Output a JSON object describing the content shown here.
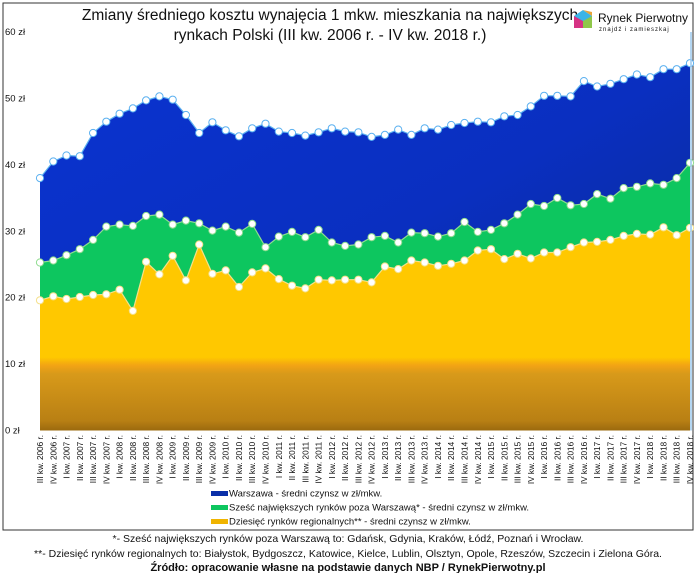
{
  "title_line1": "Zmiany średniego kosztu wynajęcia 1 mkw. mieszkania na największych",
  "title_line2": "rynkach Polski (III kw. 2006 r. - IV kw. 2018 r.)",
  "logo": {
    "name": "Rynek Pierwotny",
    "tagline": "znajdź i zamieszkaj",
    "colors": [
      "#e8a33b",
      "#3bb4e8",
      "#8fc74a",
      "#d63384"
    ]
  },
  "footnote1": "*- Sześć największych rynków poza Warszawą to: Gdańsk, Gdynia, Kraków, Łódź, Poznań i Wrocław.",
  "footnote2": "**- Dziesięć rynków regionalnych to: Białystok, Bydgoszcz, Katowice, Kielce, Lublin, Olsztyn, Opole, Rzeszów, Szczecin i Zielona Góra.",
  "source": "Źródło: opracowanie własne na podstawie danych NBP / RynekPierwotny.pl",
  "chart_data": {
    "type": "area",
    "title": "Zmiany średniego kosztu wynajęcia 1 mkw. mieszkania na największych rynkach Polski (III kw. 2006 r. - IV kw. 2018 r.)",
    "ylim": [
      0,
      60
    ],
    "yticks": [
      0,
      10,
      20,
      30,
      40,
      50,
      60
    ],
    "ytick_labels": [
      "0 zł",
      "10 zł",
      "20 zł",
      "30 zł",
      "40 zł",
      "50 zł",
      "60 zł"
    ],
    "grid": false,
    "legend_placement": "bottom-center",
    "categories": [
      "III kw. 2006 r.",
      "IV kw. 2006 r.",
      "I kw. 2007 r.",
      "II kw. 2007 r.",
      "III kw. 2007 r.",
      "IV kw. 2007 r.",
      "I kw. 2008 r.",
      "II kw. 2008 r.",
      "III kw. 2008 r.",
      "IV kw. 2008 r.",
      "I kw. 2009 r.",
      "II kw. 2009 r.",
      "III kw. 2009 r.",
      "IV kw. 2009 r.",
      "I kw. 2010 r.",
      "II kw. 2010 r.",
      "III kw. 2010 r.",
      "IV kw. 2010 r.",
      "I kw. 2011 r.",
      "II kw. 2011 r.",
      "III kw. 2011 r.",
      "IV kw. 2011 r.",
      "I kw. 2012 r.",
      "II kw. 2012 r.",
      "III kw. 2012 r.",
      "IV kw. 2012 r.",
      "I kw. 2013 r.",
      "II kw. 2013 r.",
      "III kw. 2013 r.",
      "IV kw. 2013 r.",
      "I kw. 2014 r.",
      "II kw. 2014 r.",
      "III kw. 2014 r.",
      "IV kw. 2014 r.",
      "I kw. 2015 r.",
      "II kw. 2015 r.",
      "III kw. 2015 r.",
      "IV kw. 2015 r.",
      "I kw. 2016 r.",
      "II kw. 2016 r.",
      "III kw. 2016 r.",
      "IV kw. 2016 r.",
      "I kw. 2017 r.",
      "II kw. 2017 r.",
      "III kw. 2017 r.",
      "IV kw. 2017 r.",
      "I kw. 2018 r.",
      "II kw. 2018 r.",
      "III kw. 2018 r.",
      "IV kw. 2018 r."
    ],
    "series": [
      {
        "name": "Warszawa - średni czynsz w zł/mkw.",
        "color": "#0a2fc0",
        "values": [
          38.0,
          40.5,
          41.4,
          41.3,
          44.8,
          46.5,
          47.7,
          48.5,
          49.7,
          50.3,
          49.8,
          47.5,
          44.8,
          46.4,
          45.2,
          44.3,
          45.5,
          46.2,
          45.0,
          44.8,
          44.4,
          44.9,
          45.5,
          45.0,
          44.9,
          44.2,
          44.5,
          45.3,
          44.5,
          45.5,
          45.3,
          46.0,
          46.3,
          46.5,
          46.4,
          47.3,
          47.5,
          48.8,
          50.4,
          50.4,
          50.3,
          52.6,
          51.8,
          52.2,
          52.9,
          53.6,
          53.2,
          54.4,
          54.4,
          55.3
        ]
      },
      {
        "name": "Sześć największych rynków poza Warszawą* - średni czynsz w zł/mkw.",
        "color": "#0dc65f",
        "values": [
          25.3,
          25.6,
          26.4,
          27.3,
          28.7,
          30.7,
          31.0,
          30.8,
          32.3,
          32.5,
          31.0,
          31.6,
          31.2,
          30.1,
          30.7,
          29.8,
          31.1,
          27.6,
          29.2,
          29.9,
          29.1,
          30.2,
          28.3,
          27.8,
          28.0,
          29.1,
          29.3,
          28.3,
          29.8,
          29.7,
          29.2,
          29.7,
          31.4,
          29.9,
          30.2,
          31.2,
          32.5,
          34.1,
          33.8,
          35.0,
          33.9,
          34.1,
          35.6,
          34.9,
          36.5,
          36.7,
          37.2,
          37.0,
          38.0,
          40.3
        ]
      },
      {
        "name": "Dziesięć rynków regionalnych** - średni czynsz w zł/mkw.",
        "color": "#ffc800",
        "values": [
          19.6,
          20.2,
          19.8,
          20.1,
          20.4,
          20.5,
          21.2,
          18.0,
          25.4,
          23.5,
          26.3,
          22.6,
          28.0,
          23.6,
          24.1,
          21.6,
          23.8,
          24.4,
          22.8,
          21.8,
          21.4,
          22.7,
          22.6,
          22.7,
          22.7,
          22.3,
          24.7,
          24.3,
          25.6,
          25.3,
          24.8,
          25.1,
          25.6,
          27.1,
          27.3,
          25.8,
          26.6,
          25.9,
          26.8,
          26.8,
          27.6,
          28.3,
          28.4,
          28.7,
          29.3,
          29.6,
          29.5,
          30.6,
          29.4,
          30.5
        ]
      }
    ]
  }
}
